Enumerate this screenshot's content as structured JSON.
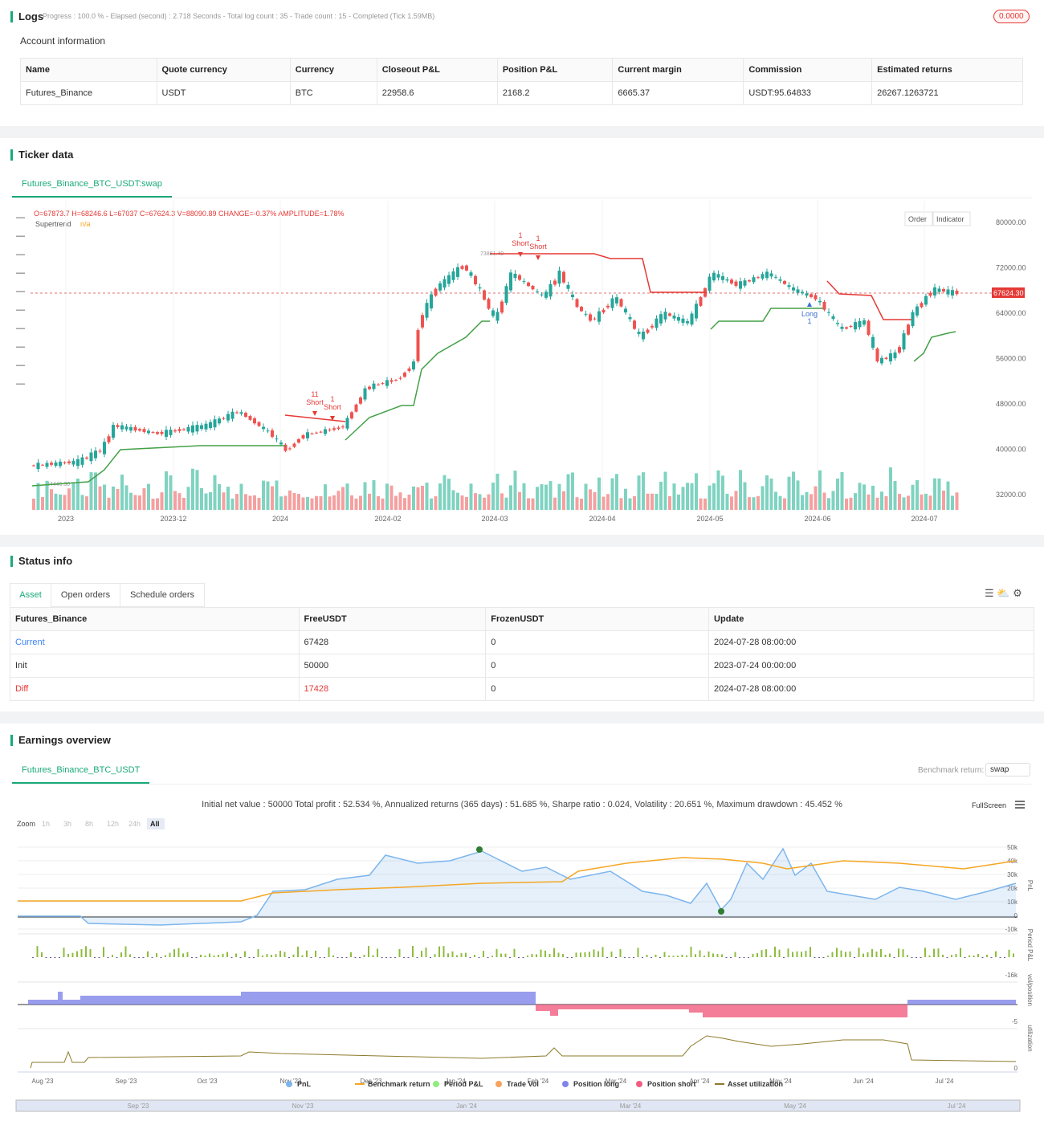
{
  "logs": {
    "title": "Logs",
    "progress": "Progress : 100.0 % - Elapsed (second) : 2.718 Seconds - Total log count : 35 - Trade count : 15 - Completed (Tick 1.59MB)",
    "badge": "0.0000"
  },
  "account": {
    "title": "Account information",
    "columns": [
      "Name",
      "Quote currency",
      "Currency",
      "Closeout P&L",
      "Position P&L",
      "Current margin",
      "Commission",
      "Estimated returns"
    ],
    "rows": [
      [
        "Futures_Binance",
        "USDT",
        "BTC",
        "22958.6",
        "2168.2",
        "6665.37",
        "USDT:95.64833",
        "26267.1263721"
      ]
    ]
  },
  "ticker": {
    "title": "Ticker data",
    "tab": "Futures_Binance_BTC_USDT:swap",
    "ohlc": "O=67873.7 H=68246.6 L=67037 C=67624.3 V=88090.89 CHANGE=-0.37% AMPLITUDE=1.78%",
    "indicator": "Supertrend",
    "indicator_value": "n/a",
    "buttons": [
      "Order",
      "Indicator"
    ],
    "last_price": "67624.30",
    "high_label": "73881.40",
    "low_label": "34446.30",
    "yticks": [
      "80000.00",
      "72000.00",
      "64000.00",
      "56000.00",
      "48000.00",
      "40000.00",
      "32000.00"
    ],
    "xticks": [
      "2023",
      "2023-12",
      "2024",
      "2024-02",
      "2024-03",
      "2024-04",
      "2024-05",
      "2024-06",
      "2024-07"
    ],
    "signals": [
      {
        "label": "Short",
        "count": "11"
      },
      {
        "label": "Short",
        "count": "1"
      },
      {
        "label": "Short",
        "count": "1"
      },
      {
        "label": "Short",
        "count": "1"
      },
      {
        "label": "Long",
        "count": "1"
      }
    ]
  },
  "status": {
    "title": "Status info",
    "tabs": [
      "Asset",
      "Open orders",
      "Schedule orders"
    ],
    "columns": [
      "Futures_Binance",
      "FreeUSDT",
      "FrozenUSDT",
      "Update"
    ],
    "rows": [
      [
        "Current",
        "67428",
        "0",
        "2024-07-28 08:00:00"
      ],
      [
        "Init",
        "50000",
        "0",
        "2023-07-24 00:00:00"
      ],
      [
        "Diff",
        "17428",
        "0",
        "2024-07-28 08:00:00"
      ]
    ]
  },
  "earnings": {
    "title": "Earnings overview",
    "tab": "Futures_Binance_BTC_USDT",
    "benchmark_label": "Benchmark return:",
    "benchmark_select": "swap",
    "stats": "Initial net value : 50000 Total profit : 52.534 %, Annualized returns (365 days) : 51.685 %, Sharpe ratio : 0.024, Volatility : 20.651 %, Maximum drawdown : 45.452 %",
    "fullscreen": "FullScreen",
    "zoom_label": "Zoom",
    "zoom": [
      "1h",
      "3h",
      "8h",
      "12h",
      "24h",
      "All"
    ],
    "pnl_ticks": [
      "50k",
      "40k",
      "30k",
      "20k",
      "10k",
      "0",
      "-10k"
    ],
    "panel_labels": [
      "PnL",
      "Period P&L",
      "vol/position",
      "utilization"
    ],
    "period_ticks": [
      "-16k"
    ],
    "position_ticks": [
      "-5"
    ],
    "util_ticks": [
      "0"
    ],
    "xticks": [
      "Aug '23",
      "Sep '23",
      "Oct '23",
      "Nov '23",
      "Dec '23",
      "Jan '24",
      "Feb '24",
      "Mar '24",
      "Apr '24",
      "May '24",
      "Jun '24",
      "Jul '24"
    ],
    "legend": [
      {
        "name": "PnL",
        "color": "#7cb5ec"
      },
      {
        "name": "Benchmark return",
        "color": "#f5a623"
      },
      {
        "name": "Period P&L",
        "color": "#90ed7d"
      },
      {
        "name": "Trade Vol",
        "color": "#f7a35c"
      },
      {
        "name": "Position long",
        "color": "#8085e9"
      },
      {
        "name": "Position short",
        "color": "#f15c80"
      },
      {
        "name": "Asset utilization",
        "color": "#8d7a2a"
      }
    ],
    "navigator": [
      "Sep '23",
      "Nov '23",
      "Jan '24",
      "Mar '24",
      "May '24",
      "Jul '24"
    ]
  }
}
